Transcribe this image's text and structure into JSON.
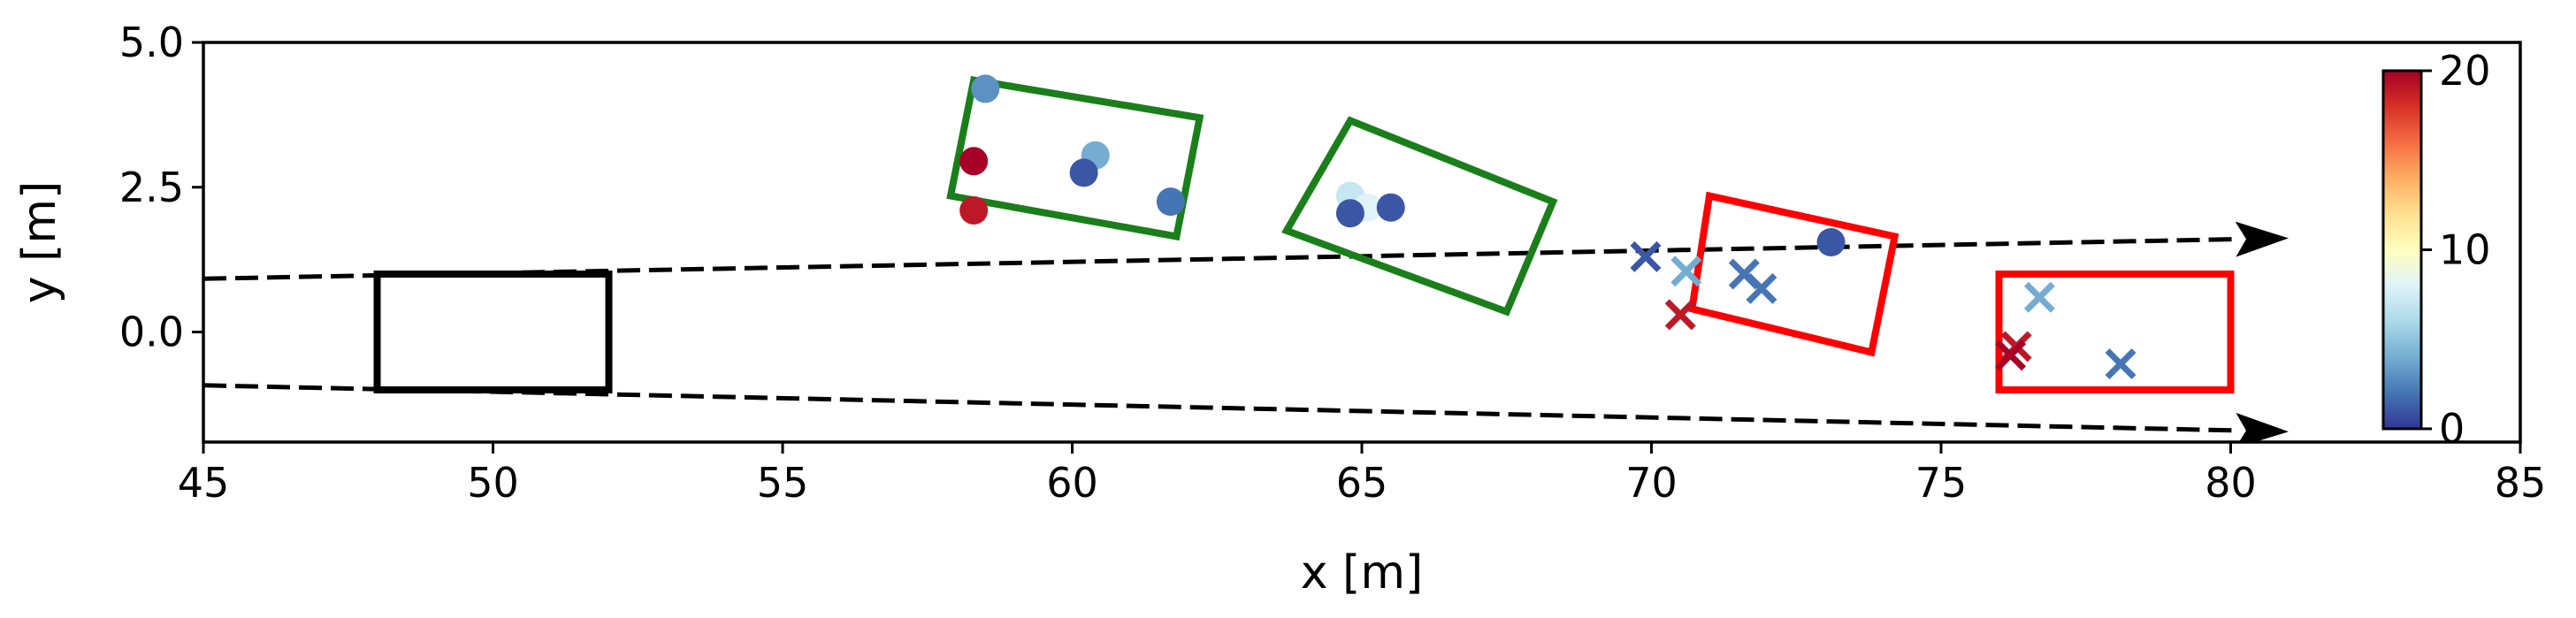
{
  "chart_data": {
    "type": "scatter",
    "title": "",
    "xlabel": "x [m]",
    "ylabel": "y [m]",
    "xlim": [
      45,
      85
    ],
    "ylim": [
      -1.9,
      5.0
    ],
    "x_ticks": [
      45,
      50,
      55,
      60,
      65,
      70,
      75,
      80,
      85
    ],
    "x_tick_labels": [
      "45",
      "50",
      "55",
      "60",
      "65",
      "70",
      "75",
      "80",
      "85"
    ],
    "y_ticks": [
      0.0,
      2.5,
      5.0
    ],
    "y_tick_labels": [
      "0.0",
      "2.5",
      "5.0"
    ],
    "grid": false,
    "legend": "none",
    "colorbar": {
      "range": [
        0,
        20
      ],
      "ticks": [
        0,
        10,
        20
      ],
      "tick_labels": [
        "0",
        "10",
        "20"
      ],
      "colormap": "RdYlBu_r",
      "stops": [
        "#313695",
        "#4575b4",
        "#74add1",
        "#abd9e9",
        "#e0f3f8",
        "#ffffbf",
        "#fee090",
        "#fdae61",
        "#f46d43",
        "#d73027",
        "#a50026"
      ]
    },
    "lines": [
      {
        "style": "dashed",
        "color": "#000000",
        "arrow": true,
        "points": [
          [
            45,
            0.92
          ],
          [
            81,
            1.62
          ]
        ]
      },
      {
        "style": "dashed",
        "color": "#000000",
        "arrow": true,
        "points": [
          [
            45,
            -0.92
          ],
          [
            81,
            -1.72
          ]
        ]
      }
    ],
    "boxes": [
      {
        "color": "#000000",
        "corners": [
          [
            48,
            -1.0
          ],
          [
            52,
            -1.0
          ],
          [
            52,
            1.0
          ],
          [
            48,
            1.0
          ]
        ]
      },
      {
        "color": "#1a7f1a",
        "corners": [
          [
            58.3,
            4.35
          ],
          [
            62.2,
            3.7
          ],
          [
            61.8,
            1.65
          ],
          [
            57.9,
            2.35
          ]
        ]
      },
      {
        "color": "#1a7f1a",
        "corners": [
          [
            63.7,
            1.75
          ],
          [
            64.8,
            3.65
          ],
          [
            68.3,
            2.25
          ],
          [
            67.5,
            0.35
          ]
        ]
      },
      {
        "color": "#ff0000",
        "corners": [
          [
            71.0,
            2.35
          ],
          [
            74.2,
            1.65
          ],
          [
            73.8,
            -0.35
          ],
          [
            70.7,
            0.4
          ]
        ]
      },
      {
        "color": "#ff0000",
        "corners": [
          [
            76.0,
            1.0
          ],
          [
            80.0,
            1.0
          ],
          [
            80.0,
            -1.0
          ],
          [
            76.0,
            -1.0
          ]
        ]
      }
    ],
    "circles": [
      {
        "x": 58.5,
        "y": 4.2,
        "v": 3
      },
      {
        "x": 58.3,
        "y": 2.95,
        "v": 20
      },
      {
        "x": 58.3,
        "y": 2.1,
        "v": 19
      },
      {
        "x": 60.4,
        "y": 3.05,
        "v": 4
      },
      {
        "x": 60.2,
        "y": 2.75,
        "v": 1
      },
      {
        "x": 61.7,
        "y": 2.25,
        "v": 2
      },
      {
        "x": 64.8,
        "y": 2.35,
        "v": 7
      },
      {
        "x": 65.1,
        "y": 2.15,
        "v": 8
      },
      {
        "x": 64.8,
        "y": 2.05,
        "v": 1
      },
      {
        "x": 65.5,
        "y": 2.15,
        "v": 1
      },
      {
        "x": 73.1,
        "y": 1.55,
        "v": 1
      }
    ],
    "crosses": [
      {
        "x": 69.9,
        "y": 1.3,
        "v": 1
      },
      {
        "x": 70.6,
        "y": 1.05,
        "v": 4
      },
      {
        "x": 71.6,
        "y": 1.0,
        "v": 2
      },
      {
        "x": 71.9,
        "y": 0.75,
        "v": 2
      },
      {
        "x": 70.5,
        "y": 0.3,
        "v": 19
      },
      {
        "x": 76.3,
        "y": -0.25,
        "v": 19
      },
      {
        "x": 76.2,
        "y": -0.4,
        "v": 20
      },
      {
        "x": 76.7,
        "y": 0.6,
        "v": 4
      },
      {
        "x": 78.1,
        "y": -0.55,
        "v": 2
      }
    ]
  }
}
